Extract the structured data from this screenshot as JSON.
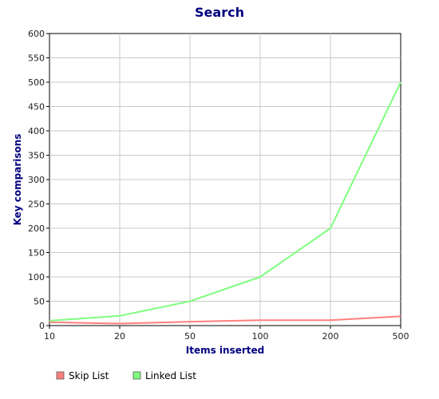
{
  "chart_data": {
    "type": "line",
    "title": "Search",
    "xlabel": "Items inserted",
    "ylabel": "Key comparisons",
    "categories": [
      "10",
      "20",
      "50",
      "100",
      "200",
      "500"
    ],
    "x_scale": "categorical",
    "ylim": [
      0,
      600
    ],
    "yticks": [
      0,
      50,
      100,
      150,
      200,
      250,
      300,
      350,
      400,
      450,
      500,
      550,
      600
    ],
    "grid": true,
    "legend_position": "bottom-left",
    "series": [
      {
        "name": "Skip List",
        "color": "#ff7f7f",
        "values": [
          7,
          4,
          8,
          11,
          11,
          19
        ]
      },
      {
        "name": "Linked List",
        "color": "#7fff7f",
        "values": [
          10,
          20,
          50,
          100,
          200,
          500
        ]
      }
    ]
  }
}
